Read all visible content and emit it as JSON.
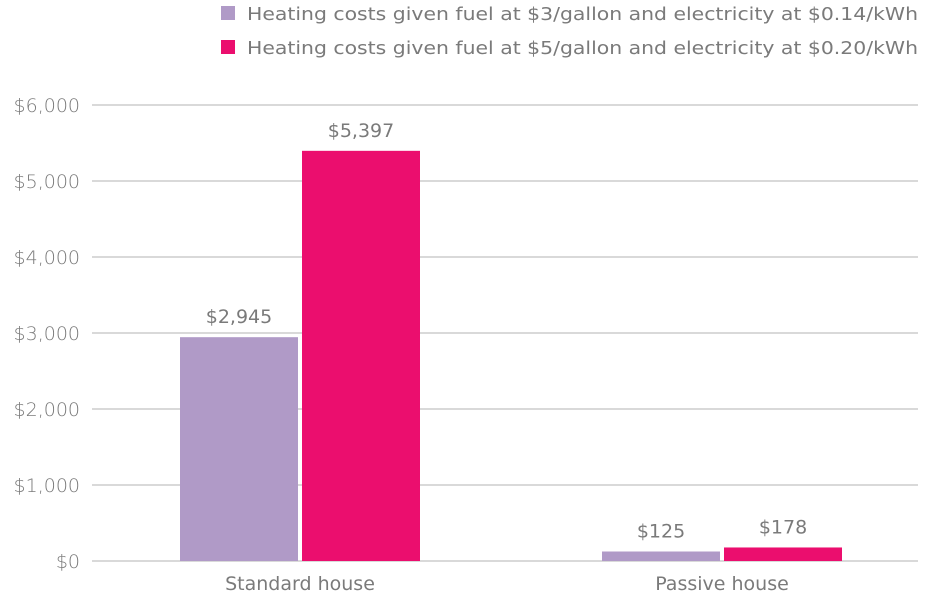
{
  "chart_data": {
    "type": "bar",
    "categories": [
      "Standard house",
      "Passive house"
    ],
    "series": [
      {
        "name": "Heating costs given fuel at $3/gallon and electricity at $0.14/kWh",
        "values": [
          2945,
          125
        ],
        "labels": [
          "$2,945",
          "$125"
        ],
        "color": "#b09ac7"
      },
      {
        "name": "Heating costs given fuel at $5/gallon and electricity at $0.20/kWh",
        "values": [
          5397,
          178
        ],
        "labels": [
          "$5,397",
          "$178"
        ],
        "color": "#eb0e6e"
      }
    ],
    "ylim": [
      0,
      6000
    ],
    "yticks": [
      0,
      1000,
      2000,
      3000,
      4000,
      5000,
      6000
    ],
    "ytick_labels": [
      "$0",
      "$1,000",
      "$2,000",
      "$3,000",
      "$4,000",
      "$5,000",
      "$6,000"
    ],
    "title": "",
    "xlabel": "",
    "ylabel": "",
    "grid": true,
    "legend_position": "top-right"
  }
}
